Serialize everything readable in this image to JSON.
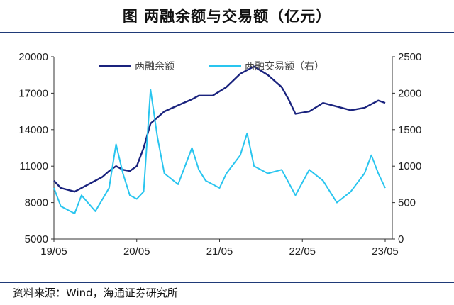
{
  "title": "图 两融余额与交易额（亿元）",
  "source": "资料来源：Wind，海通证券研究所",
  "chart_data": {
    "type": "line",
    "title": "图 两融余额与交易额（亿元）",
    "x_ticks": [
      "19/05",
      "20/05",
      "21/05",
      "22/05",
      "23/05"
    ],
    "y_left": {
      "ticks": [
        "20000",
        "17000",
        "14000",
        "11000",
        "8000",
        "5000"
      ],
      "range": [
        5000,
        20000
      ]
    },
    "y_right": {
      "ticks": [
        "2500",
        "2000",
        "1500",
        "1000",
        "500",
        "0"
      ],
      "range": [
        0,
        2500
      ]
    },
    "grid": false,
    "legend_position": "top",
    "series": [
      {
        "name": "两融余额",
        "axis": "left",
        "color": "#1a237e",
        "points": [
          [
            "19/05",
            9800
          ],
          [
            "19/06",
            9200
          ],
          [
            "19/08",
            8900
          ],
          [
            "19/10",
            9500
          ],
          [
            "19/12",
            10100
          ],
          [
            "20/01",
            10600
          ],
          [
            "20/02",
            11000
          ],
          [
            "20/03",
            10700
          ],
          [
            "20/04",
            10600
          ],
          [
            "20/05",
            11000
          ],
          [
            "20/06",
            12500
          ],
          [
            "20/07",
            14500
          ],
          [
            "20/09",
            15500
          ],
          [
            "20/11",
            16000
          ],
          [
            "21/01",
            16500
          ],
          [
            "21/02",
            16800
          ],
          [
            "21/04",
            16800
          ],
          [
            "21/06",
            17500
          ],
          [
            "21/08",
            18600
          ],
          [
            "21/10",
            19200
          ],
          [
            "21/12",
            18500
          ],
          [
            "22/02",
            17500
          ],
          [
            "22/03",
            16500
          ],
          [
            "22/04",
            15300
          ],
          [
            "22/06",
            15500
          ],
          [
            "22/08",
            16200
          ],
          [
            "22/10",
            15900
          ],
          [
            "22/12",
            15600
          ],
          [
            "23/02",
            15800
          ],
          [
            "23/04",
            16400
          ],
          [
            "23/05",
            16200
          ]
        ]
      },
      {
        "name": "两融交易额（右）",
        "axis": "right",
        "color": "#29c5ef",
        "points": [
          [
            "19/05",
            700
          ],
          [
            "19/06",
            450
          ],
          [
            "19/08",
            350
          ],
          [
            "19/09",
            600
          ],
          [
            "19/11",
            380
          ],
          [
            "20/01",
            700
          ],
          [
            "20/02",
            1300
          ],
          [
            "20/03",
            900
          ],
          [
            "20/04",
            600
          ],
          [
            "20/05",
            550
          ],
          [
            "20/06",
            650
          ],
          [
            "20/07",
            2050
          ],
          [
            "20/08",
            1400
          ],
          [
            "20/09",
            900
          ],
          [
            "20/11",
            750
          ],
          [
            "21/01",
            1250
          ],
          [
            "21/02",
            950
          ],
          [
            "21/03",
            800
          ],
          [
            "21/05",
            700
          ],
          [
            "21/06",
            900
          ],
          [
            "21/08",
            1150
          ],
          [
            "21/09",
            1450
          ],
          [
            "21/10",
            1000
          ],
          [
            "21/12",
            900
          ],
          [
            "22/02",
            950
          ],
          [
            "22/04",
            600
          ],
          [
            "22/06",
            950
          ],
          [
            "22/08",
            800
          ],
          [
            "22/10",
            500
          ],
          [
            "22/12",
            650
          ],
          [
            "23/02",
            900
          ],
          [
            "23/03",
            1150
          ],
          [
            "23/04",
            900
          ],
          [
            "23/05",
            700
          ]
        ]
      }
    ]
  }
}
